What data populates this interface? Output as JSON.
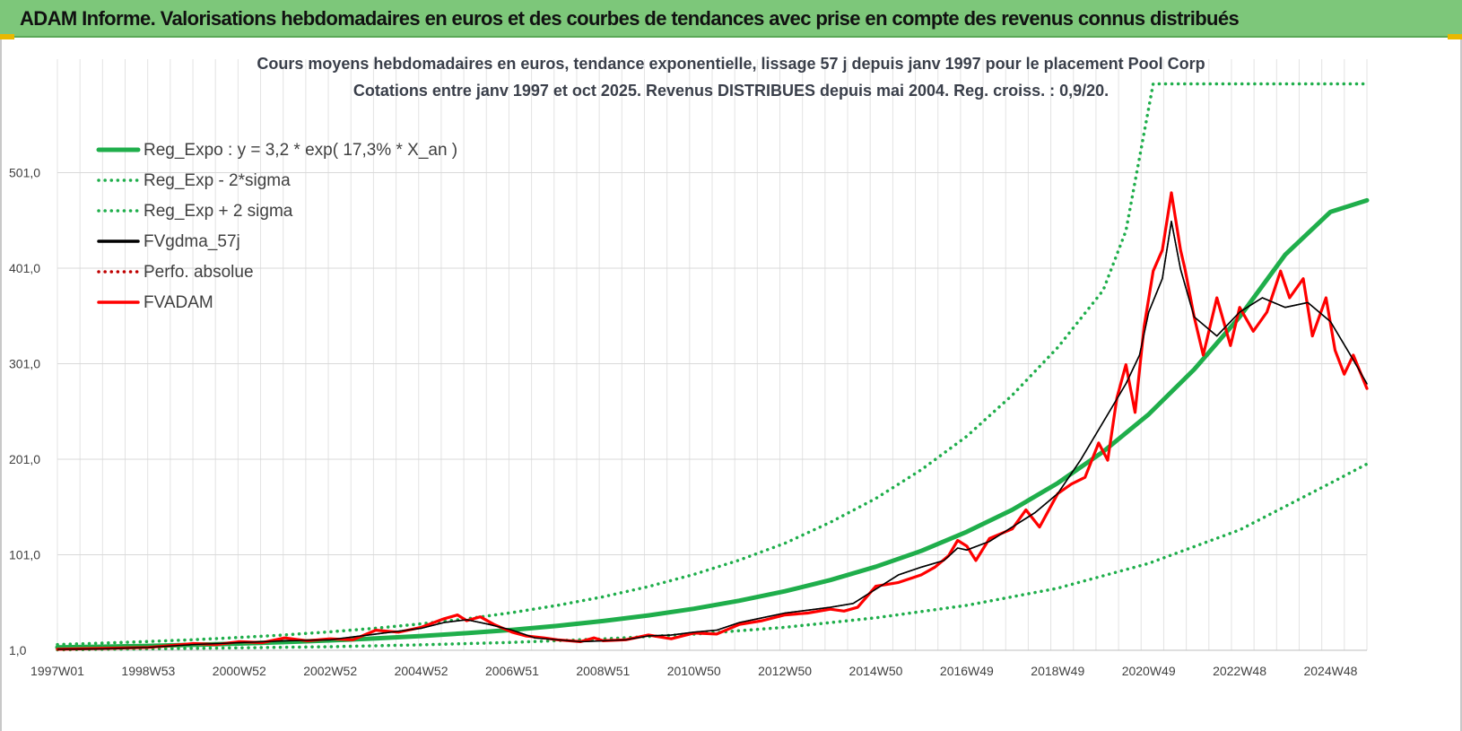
{
  "banner": {
    "title": "ADAM Informe. Valorisations hebdomadaires en euros et des courbes de tendances avec prise en compte des revenus connus distribués"
  },
  "chart_data": {
    "type": "line",
    "title": [
      "Cours moyens hebdomadaires en euros, tendance exponentielle, lissage 57 j depuis janv 1997 pour le placement Pool Corp",
      "Cotations entre janv 1997 et oct 2025. Revenus DISTRIBUES depuis mai 2004.  Reg. croiss. : 0,9/20."
    ],
    "xlabel": "",
    "ylabel": "",
    "x_range": [
      1997.0,
      2025.8
    ],
    "ylim": [
      1,
      601
    ],
    "y_ticks": [
      1,
      101,
      201,
      301,
      401,
      501
    ],
    "y_tick_labels": [
      "1,0",
      "101,0",
      "201,0",
      "301,0",
      "401,0",
      "501,0"
    ],
    "x_ticks": [
      1997.0,
      1999.0,
      2001.0,
      2003.0,
      2005.0,
      2007.0,
      2009.0,
      2011.0,
      2013.0,
      2015.0,
      2017.0,
      2019.0,
      2021.0,
      2023.0,
      2025.0
    ],
    "x_tick_labels": [
      "1997W01",
      "1998W53",
      "2000W52",
      "2002W52",
      "2004W52",
      "2006W51",
      "2008W51",
      "2010W50",
      "2012W50",
      "2014W50",
      "2016W49",
      "2018W49",
      "2020W49",
      "2022W48",
      "2024W48"
    ],
    "grid": true,
    "legend_position": "top-left",
    "colors": {
      "trend": "#1fae4b",
      "price": "#ff0000",
      "smooth": "#000000",
      "perfo": "#c00000"
    },
    "series": [
      {
        "name": "Reg_Expo : y = 3,2 * exp( 17,3% *  X_an )",
        "style": "solid",
        "color": "#1fae4b",
        "x": [
          1997.0,
          1998,
          1999,
          2000,
          2001,
          2002,
          2003,
          2004,
          2005,
          2006,
          2007,
          2008,
          2009,
          2010,
          2011,
          2012,
          2013,
          2014,
          2015,
          2016,
          2017,
          2018,
          2019,
          2020,
          2021,
          2022,
          2023,
          2024,
          2025,
          2025.8
        ],
        "y": [
          4.0,
          4.8,
          5.6,
          6.7,
          8.0,
          9.5,
          11.3,
          13.4,
          15.9,
          18.9,
          22.4,
          26.6,
          31.6,
          37.5,
          44.5,
          52.9,
          62.8,
          74.5,
          88.5,
          105,
          125,
          148,
          176,
          209,
          248,
          295,
          350,
          415,
          460,
          472
        ]
      },
      {
        "name": "Reg_Exp - 2*sigma",
        "style": "dotted",
        "color": "#1fae4b",
        "x": [
          1997.0,
          1999,
          2001,
          2003,
          2005,
          2007,
          2009,
          2011,
          2013,
          2015,
          2017,
          2019,
          2021,
          2023,
          2025,
          2025.8
        ],
        "y": [
          1.5,
          2.5,
          3.5,
          4.8,
          6.7,
          9.3,
          12.9,
          17.9,
          25,
          35,
          48,
          66,
          92,
          127,
          176,
          196
        ]
      },
      {
        "name": "Reg_Exp + 2 sigma",
        "style": "dotted",
        "color": "#1fae4b",
        "x": [
          1997.0,
          1998,
          1999,
          2000,
          2001,
          2002,
          2003,
          2004,
          2005,
          2006,
          2007,
          2008,
          2009,
          2010,
          2011,
          2012,
          2013,
          2014,
          2015,
          2016,
          2017,
          2018,
          2019,
          2020,
          2020.5,
          2021.1,
          2021.5,
          2022,
          2023,
          2024,
          2025,
          2025.8
        ],
        "y": [
          7,
          8.5,
          10.2,
          12.1,
          14.4,
          17.1,
          20.3,
          24.1,
          28.7,
          34,
          40.4,
          48,
          57,
          67.7,
          80.4,
          95.5,
          113,
          135,
          160,
          190,
          225,
          268,
          318,
          378,
          440,
          594,
          594,
          594,
          594,
          594,
          594,
          594
        ]
      },
      {
        "name": "FVgdma_57j",
        "style": "solid",
        "color": "#000000",
        "x": [
          1997.0,
          1998,
          1999,
          2000,
          2001,
          2002,
          2003,
          2004,
          2005,
          2005.5,
          2006,
          2006.5,
          2007,
          2007.5,
          2008,
          2008.5,
          2009,
          2009.5,
          2010,
          2010.5,
          2011,
          2011.5,
          2012,
          2012.5,
          2013,
          2013.5,
          2014,
          2014.5,
          2015,
          2015.5,
          2016,
          2016.5,
          2016.8,
          2017,
          2017.5,
          2018,
          2018.5,
          2019,
          2019.5,
          2020,
          2020.5,
          2020.8,
          2021,
          2021.3,
          2021.5,
          2021.7,
          2022,
          2022.5,
          2023,
          2023.5,
          2024,
          2024.5,
          2025,
          2025.5,
          2025.8
        ],
        "y": [
          2,
          2.5,
          4,
          7,
          9,
          11,
          12,
          18,
          24,
          30,
          33,
          28,
          22,
          14,
          12,
          10,
          11,
          12,
          16,
          17,
          20,
          22,
          30,
          35,
          40,
          43,
          46,
          50,
          65,
          80,
          88,
          95,
          108,
          106,
          115,
          130,
          145,
          165,
          200,
          240,
          280,
          310,
          355,
          390,
          450,
          400,
          350,
          330,
          355,
          370,
          360,
          365,
          345,
          305,
          280
        ]
      },
      {
        "name": "Perfo. absolue",
        "style": "dotted",
        "color": "#c00000",
        "x": [],
        "y": []
      },
      {
        "name": "FVADAM",
        "style": "solid",
        "color": "#ff0000",
        "x": [
          1997.0,
          1998,
          1999,
          2000,
          2000.5,
          2001,
          2001.5,
          2002,
          2002.5,
          2003,
          2003.5,
          2004,
          2004.5,
          2005,
          2005.5,
          2005.8,
          2006,
          2006.3,
          2006.6,
          2007,
          2007.3,
          2007.7,
          2008,
          2008.5,
          2008.8,
          2009,
          2009.5,
          2010,
          2010.5,
          2011,
          2011.5,
          2012,
          2012.5,
          2013,
          2013.5,
          2014,
          2014.3,
          2014.6,
          2015,
          2015.5,
          2016,
          2016.3,
          2016.6,
          2016.8,
          2017,
          2017.2,
          2017.5,
          2018,
          2018.3,
          2018.6,
          2019,
          2019.3,
          2019.6,
          2019.9,
          2020.1,
          2020.3,
          2020.5,
          2020.7,
          2020.9,
          2021.1,
          2021.3,
          2021.5,
          2021.7,
          2021.8,
          2022,
          2022.2,
          2022.5,
          2022.8,
          2023,
          2023.3,
          2023.6,
          2023.9,
          2024.1,
          2024.4,
          2024.6,
          2024.9,
          2025.1,
          2025.3,
          2025.5,
          2025.8
        ],
        "y": [
          2,
          3,
          4,
          8,
          7,
          10,
          9,
          14,
          11,
          13,
          12,
          22,
          20,
          25,
          34,
          38,
          32,
          36,
          28,
          20,
          16,
          14,
          12,
          10,
          14,
          11,
          12,
          17,
          13,
          19,
          18,
          28,
          32,
          38,
          40,
          44,
          42,
          46,
          68,
          72,
          80,
          88,
          100,
          116,
          110,
          95,
          118,
          128,
          148,
          130,
          165,
          175,
          182,
          218,
          200,
          265,
          300,
          250,
          340,
          398,
          420,
          480,
          420,
          400,
          350,
          310,
          370,
          320,
          360,
          335,
          355,
          398,
          370,
          390,
          330,
          370,
          315,
          290,
          310,
          275
        ]
      }
    ]
  }
}
